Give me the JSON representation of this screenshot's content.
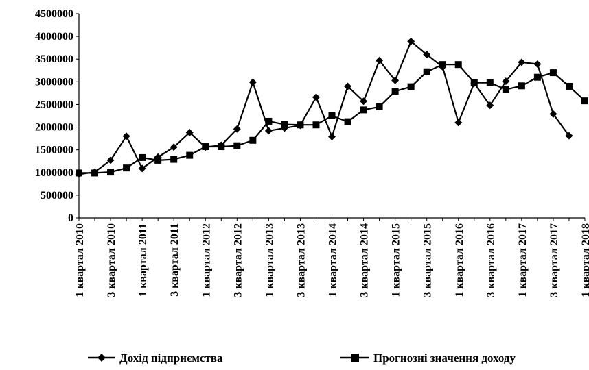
{
  "chart_data": {
    "type": "line",
    "title": "",
    "xlabel": "",
    "ylabel": "",
    "ylim": [
      0,
      4500000
    ],
    "yticks": [
      0,
      500000,
      1000000,
      1500000,
      2000000,
      2500000,
      3000000,
      3500000,
      4000000,
      4500000
    ],
    "ytick_labels": [
      "0",
      "500000",
      "1000000",
      "1500000",
      "2000000",
      "2500000",
      "3000000",
      "3500000",
      "4000000",
      "4500000"
    ],
    "grid": false,
    "legend_position": "bottom",
    "x_tick_labels": [
      "1 квартал 2010",
      "3 квартал 2010",
      "1 квартал 2011",
      "3 квартал 2011",
      "1 квартал 2012",
      "3 квартал 2012",
      "1 квартал 2013",
      "3 квартал 2013",
      "1 квартал 2014",
      "3 квартал 2014",
      "1 квартал 2015",
      "3 квартал 2015",
      "1 квартал 2016",
      "3 квартал 2016",
      "1 квартал 2017",
      "3 квартал 2017",
      "1 квартал 2018"
    ],
    "series": [
      {
        "name": "Дохід підприємства",
        "marker": "diamond",
        "color": "#000000",
        "values": [
          960000,
          1010000,
          1270000,
          1800000,
          1090000,
          1340000,
          1560000,
          1880000,
          1560000,
          1600000,
          1960000,
          2990000,
          1920000,
          1980000,
          2040000,
          2660000,
          1790000,
          2900000,
          2570000,
          3470000,
          3030000,
          3890000,
          3600000,
          3330000,
          2100000,
          2970000,
          2480000,
          3010000,
          3430000,
          3390000,
          2290000,
          1810000
        ]
      },
      {
        "name": "Прогнозні значення доходу",
        "marker": "square",
        "color": "#000000",
        "values": [
          990000,
          990000,
          1010000,
          1100000,
          1330000,
          1270000,
          1290000,
          1380000,
          1570000,
          1570000,
          1590000,
          1710000,
          2130000,
          2060000,
          2050000,
          2050000,
          2250000,
          2120000,
          2380000,
          2450000,
          2790000,
          2890000,
          3220000,
          3380000,
          3380000,
          2980000,
          2980000,
          2830000,
          2910000,
          3100000,
          3200000,
          2900000,
          2580000
        ]
      }
    ]
  }
}
